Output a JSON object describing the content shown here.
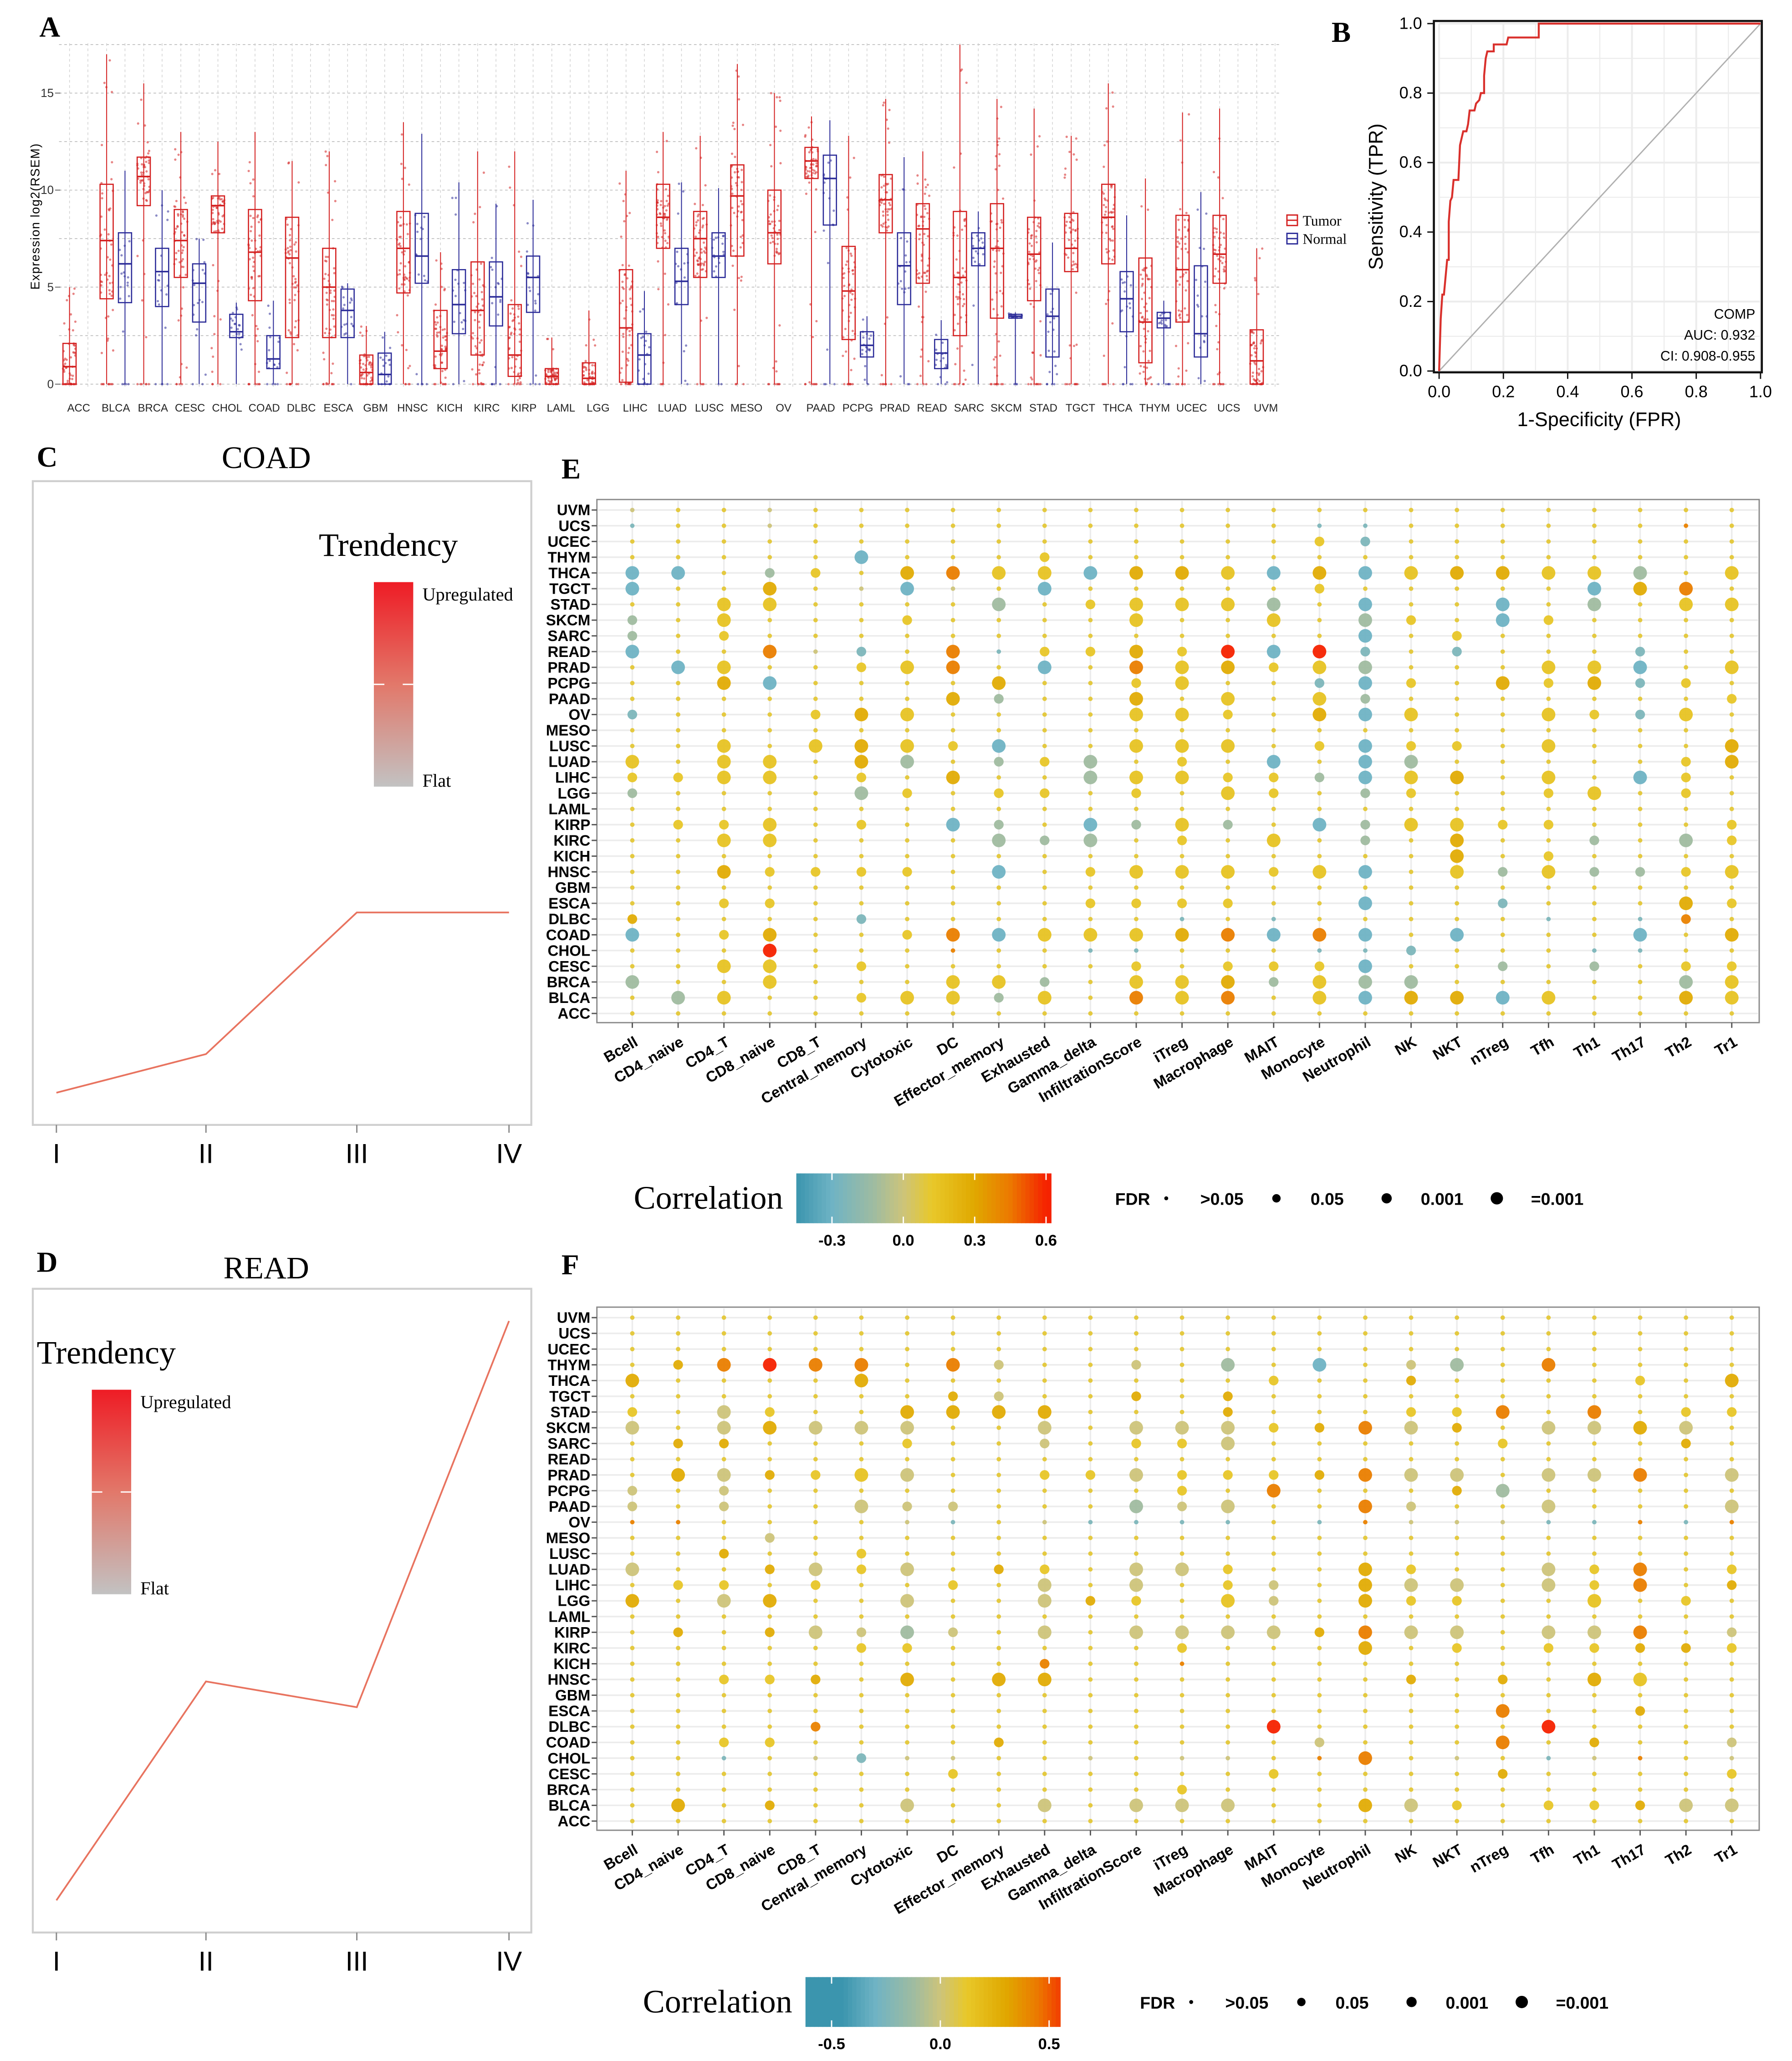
{
  "panel_labels": {
    "A": "A",
    "B": "B",
    "C": "C",
    "D": "D",
    "E": "E",
    "F": "F"
  },
  "chart_data": [
    {
      "id": "A",
      "type": "box",
      "ylabel": "Expression log2(RSEM)",
      "ylim": [
        0,
        18
      ],
      "yticks": [
        0,
        5,
        10,
        15
      ],
      "ytick_labels": [
        "0",
        "5",
        "10",
        "15"
      ],
      "grid": true,
      "legend": [
        "Tumor",
        "Normal"
      ],
      "legend_placement": "right",
      "colors": {
        "Tumor": "#d42020",
        "Normal": "#2b2b98"
      },
      "categories": [
        "ACC",
        "BLCA",
        "BRCA",
        "CESC",
        "CHOL",
        "COAD",
        "DLBC",
        "ESCA",
        "GBM",
        "HNSC",
        "KICH",
        "KIRC",
        "KIRP",
        "LAML",
        "LGG",
        "LIHC",
        "LUAD",
        "LUSC",
        "MESO",
        "OV",
        "PAAD",
        "PCPG",
        "PRAD",
        "READ",
        "SARC",
        "SKCM",
        "STAD",
        "TGCT",
        "THCA",
        "THYM",
        "UCEC",
        "UCS",
        "UVM"
      ],
      "box_fields": [
        "q1",
        "median",
        "q3",
        "max"
      ],
      "tumor": [
        [
          0,
          0.9,
          2.1,
          5
        ],
        [
          4.4,
          7.4,
          10.3,
          17
        ],
        [
          9.2,
          10.7,
          11.7,
          15.5
        ],
        [
          5.5,
          7.4,
          9,
          13
        ],
        [
          7.8,
          9.2,
          9.7,
          12.5
        ],
        [
          4.3,
          6.8,
          9,
          13
        ],
        [
          2.4,
          6.5,
          8.6,
          11.5
        ],
        [
          2.4,
          5,
          7,
          12
        ],
        [
          0,
          0.6,
          1.5,
          3
        ],
        [
          4.7,
          7,
          8.9,
          13.5
        ],
        [
          0.8,
          1.7,
          3.8,
          6.8
        ],
        [
          1.5,
          3.8,
          6.3,
          12
        ],
        [
          0.4,
          1.5,
          4.1,
          12
        ],
        [
          0,
          0.4,
          0.8,
          2.4
        ],
        [
          0,
          0.3,
          1.1,
          3.8
        ],
        [
          0.1,
          2.9,
          5.9,
          11
        ],
        [
          7,
          8.6,
          10.3,
          13
        ],
        [
          5.5,
          7.5,
          8.9,
          12.8
        ],
        [
          6.6,
          9.7,
          11.3,
          16.5
        ],
        [
          6.2,
          7.8,
          10,
          15
        ],
        [
          10.6,
          11.5,
          12.2,
          13.8
        ],
        [
          2.3,
          4.8,
          7.1,
          12.8
        ],
        [
          7.8,
          9.5,
          10.8,
          14.7
        ],
        [
          5.2,
          8,
          9.3,
          12
        ],
        [
          2.5,
          5.5,
          8.9,
          17.5
        ],
        [
          3.4,
          7,
          9.3,
          14.7
        ],
        [
          4.3,
          6.7,
          8.6,
          14.2
        ],
        [
          5.8,
          7,
          8.8,
          12.8
        ],
        [
          6.2,
          8.6,
          10.3,
          15.5
        ],
        [
          1.1,
          3.2,
          6.5,
          10.6
        ],
        [
          3.2,
          5.9,
          8.7,
          14
        ],
        [
          5.2,
          6.7,
          8.7,
          14.2
        ],
        [
          0,
          1.2,
          2.8,
          7
        ]
      ],
      "normal": [
        null,
        [
          4.2,
          6.2,
          7.8,
          11
        ],
        [
          4,
          5.8,
          7,
          10
        ],
        [
          3.2,
          5.2,
          6.2,
          7.5
        ],
        [
          2.4,
          2.7,
          3.6,
          4.2
        ],
        [
          0.8,
          1.3,
          2.5,
          4.3
        ],
        null,
        [
          2.4,
          3.8,
          4.9,
          5.2
        ],
        [
          0,
          0.5,
          1.6,
          2.7
        ],
        [
          5.2,
          6.6,
          8.8,
          12.9
        ],
        [
          2.6,
          4.1,
          5.9,
          10.4
        ],
        [
          3,
          4.5,
          6.3,
          9.3
        ],
        [
          3.7,
          5.5,
          6.6,
          9.5
        ],
        null,
        null,
        [
          0,
          1.5,
          2.6,
          4.8
        ],
        [
          4.1,
          5.3,
          7,
          10.4
        ],
        [
          5.5,
          6.6,
          7.8,
          10.1
        ],
        null,
        null,
        [
          8.2,
          10.6,
          11.8,
          13.6
        ],
        [
          1.4,
          2,
          2.7,
          3.5
        ],
        [
          4.1,
          6.1,
          7.8,
          11.7
        ],
        [
          0.8,
          1.6,
          2.3,
          3.3
        ],
        [
          6.1,
          7,
          7.8,
          8.9
        ],
        [
          3.4,
          3.5,
          3.6,
          3.7
        ],
        [
          1.4,
          3.5,
          4.9,
          7.3
        ],
        null,
        [
          2.7,
          4.4,
          5.8,
          8.7
        ],
        [
          2.9,
          3.4,
          3.7,
          4.3
        ],
        [
          1.4,
          2.6,
          6.1,
          9.9
        ],
        null,
        null
      ]
    },
    {
      "id": "B",
      "type": "line",
      "title": "",
      "xlabel": "1-Specificity (FPR)",
      "ylabel": "Sensitivity (TPR)",
      "xlim": [
        0,
        1
      ],
      "ylim": [
        0,
        1
      ],
      "xticks": [
        "0.0",
        "0.2",
        "0.4",
        "0.6",
        "0.8",
        "1.0"
      ],
      "yticks": [
        "0.0",
        "0.2",
        "0.4",
        "0.6",
        "0.8",
        "1.0"
      ],
      "grid": true,
      "series": [
        {
          "name": "ROC",
          "color": "#d9302c",
          "fpr": [
            0,
            0.005,
            0.01,
            0.015,
            0.02,
            0.025,
            0.03,
            0.03,
            0.035,
            0.04,
            0.045,
            0.06,
            0.065,
            0.075,
            0.085,
            0.09,
            0.095,
            0.11,
            0.115,
            0.125,
            0.13,
            0.14,
            0.14,
            0.145,
            0.15,
            0.17,
            0.17,
            0.21,
            0.215,
            0.31,
            0.31,
            1
          ],
          "tpr": [
            0,
            0.15,
            0.22,
            0.22,
            0.27,
            0.32,
            0.32,
            0.43,
            0.49,
            0.5,
            0.55,
            0.55,
            0.65,
            0.69,
            0.69,
            0.71,
            0.75,
            0.75,
            0.77,
            0.78,
            0.8,
            0.8,
            0.85,
            0.9,
            0.92,
            0.92,
            0.94,
            0.94,
            0.96,
            0.96,
            1,
            1
          ]
        },
        {
          "name": "reference",
          "color": "#b0b0b0",
          "fpr": [
            0,
            1
          ],
          "tpr": [
            0,
            1
          ]
        }
      ],
      "annotation": {
        "gene": "COMP",
        "auc": "AUC: 0.932",
        "ci": "CI: 0.908-0.955"
      }
    },
    {
      "id": "C",
      "type": "line",
      "title": "COAD",
      "x": [
        "I",
        "II",
        "III",
        "IV"
      ],
      "y_relative": [
        0.05,
        0.11,
        0.33,
        0.33
      ],
      "line_color": "#e8735f",
      "legend": {
        "title": "Trendency",
        "high": "Upregulated",
        "low": "Flat",
        "placement": "top-right"
      }
    },
    {
      "id": "D",
      "type": "line",
      "title": "READ",
      "x": [
        "I",
        "II",
        "III",
        "IV"
      ],
      "y_relative": [
        0.05,
        0.39,
        0.35,
        0.95
      ],
      "line_color": "#e8735f",
      "legend": {
        "title": "Trendency",
        "high": "Upregulated",
        "low": "Flat",
        "placement": "top-left"
      }
    },
    {
      "id": "E",
      "type": "heatmap",
      "rows": [
        "UVM",
        "UCS",
        "UCEC",
        "THYM",
        "THCA",
        "TGCT",
        "STAD",
        "SKCM",
        "SARC",
        "READ",
        "PRAD",
        "PCPG",
        "PAAD",
        "OV",
        "MESO",
        "LUSC",
        "LUAD",
        "LIHC",
        "LGG",
        "LAML",
        "KIRP",
        "KIRC",
        "KICH",
        "HNSC",
        "GBM",
        "ESCA",
        "DLBC",
        "COAD",
        "CHOL",
        "CESC",
        "BRCA",
        "BLCA",
        "ACC"
      ],
      "columns": [
        "Bcell",
        "CD4_naive",
        "CD4_T",
        "CD8_naive",
        "CD8_T",
        "Central_memory",
        "Cytotoxic",
        "DC",
        "Effector_memory",
        "Exhausted",
        "Gamma_delta",
        "InfiltrationScore",
        "iTreg",
        "Macrophage",
        "MAIT",
        "Monocyte",
        "Neutrophil",
        "NK",
        "NKT",
        "nTreg",
        "Tfh",
        "Th1",
        "Th17",
        "Th2",
        "Tr1"
      ],
      "code_key": {
        ".": {
          "r": 0.1,
          "fdr": ">0.05"
        },
        ",": {
          "r": 0.0,
          "fdr": ">0.05"
        },
        ":": {
          "r": -0.25,
          "fdr": ">0.05"
        },
        "~": {
          "r": 0.42,
          "fdr": ">0.05"
        },
        "b": {
          "r": -0.25,
          "fdr": "0.05"
        },
        "g": {
          "r": -0.12,
          "fdr": "0.05"
        },
        "k": {
          "r": 0.0,
          "fdr": "0.05"
        },
        "y": {
          "r": 0.13,
          "fdr": "0.05"
        },
        "a": {
          "r": 0.27,
          "fdr": "0.05"
        },
        "o": {
          "r": 0.42,
          "fdr": "0.05"
        },
        "B": {
          "r": -0.3,
          "fdr": "=0.001"
        },
        "G": {
          "r": -0.12,
          "fdr": "=0.001"
        },
        "K": {
          "r": 0.0,
          "fdr": "=0.001"
        },
        "Y": {
          "r": 0.15,
          "fdr": "=0.001"
        },
        "A": {
          "r": 0.28,
          "fdr": "=0.001"
        },
        "O": {
          "r": 0.43,
          "fdr": "=0.001"
        },
        "R": {
          "r": 0.6,
          "fdr": "=0.001"
        }
      },
      "cells": [
        ",..,.....................",
        ":..,...........::......~.",
        "...............yb........",
        ".....B...y...............",
        "BB.gy.AOYYBAAYBABYAAYYG.Y",
        "B..A.,B,.B.....y.....BAO.",
        "..YY....G.yYYYG.B..B.G.YY",
        "g.Y...y....Y..Y.Gy.By....",
        "g.y.............B.y......",
        "B..O,b.O:yyAyRBRb.b...b..",
        ".BY..yYO.B.OYAyYG...YYB.Y",
        "..AB....A..yY..bBy.AyAby.",
        ".......Ag..A.Y.Yg.......y",
        "b...yAY....YYy.ABY..YybY.",
        ".........................",
        "..Y.YAYyB..YYY.yByy.Y...A",
        "Y.YY.AG.gyG.y.B.BG.....yA",
        "yyYY.y.A..GYYyygBYA.Y.By.",
        "g....Gy.yy.y.Yy.gy..yY.y.",
        ".........................",
        ".yyY.y.Bg.BgYg.BgYYyy...y",
        "..YY....GgG.y.Y.g.A..g.Gy",
        "..................A.y....",
        "..Ayyyy.B.yYYYyYB.YgYggyY",
        ".........................",
        "..yy......yyyy..B..b...Ay",
        "a....b......:.:.....:.:o.",
        "B.yA..yOBYYYAOBOB.B...B.A",
        "...R...~..::...::b...::..",
        "..YY.y.....y.yyyB..g.g.yy",
        "G..Y...YYg.YYAgYGG.....GY",
        ".GY..yYYgY.OYO.YBAABY..AY",
        "........................."
      ],
      "colorbar": {
        "title": "Correlation",
        "range": [
          -0.45,
          0.62
        ],
        "ticks": [
          -0.3,
          0.0,
          0.3,
          0.6
        ],
        "tick_labels": [
          "-0.3",
          "0.0",
          "0.3",
          "0.6"
        ]
      },
      "fdr_legend": {
        "title": "FDR",
        "labels": [
          ">0.05",
          "0.05",
          "0.001",
          "=0.001"
        ]
      },
      "grid": true
    },
    {
      "id": "F",
      "type": "heatmap",
      "rows": [
        "UVM",
        "UCS",
        "UCEC",
        "THYM",
        "THCA",
        "TGCT",
        "STAD",
        "SKCM",
        "SARC",
        "READ",
        "PRAD",
        "PCPG",
        "PAAD",
        "OV",
        "MESO",
        "LUSC",
        "LUAD",
        "LIHC",
        "LGG",
        "LAML",
        "KIRP",
        "KIRC",
        "KICH",
        "HNSC",
        "GBM",
        "ESCA",
        "DLBC",
        "COAD",
        "CHOL",
        "CESC",
        "BRCA",
        "BLCA",
        "ACC"
      ],
      "columns": [
        "Bcell",
        "CD4_naive",
        "CD4_T",
        "CD8_naive",
        "CD8_T",
        "Central_memory",
        "Cytotoxic",
        "DC",
        "Effector_memory",
        "Exhausted",
        "Gamma_delta",
        "InfiltrationScore",
        "iTreg",
        "Macrophage",
        "MAIT",
        "Monocyte",
        "Neutrophil",
        "NK",
        "NKT",
        "nTreg",
        "Tfh",
        "Th1",
        "Th17",
        "Th2",
        "Tr1"
      ],
      "cells": [
        ".........................",
        ".........................",
        ".........................",
        ".aOROO.Ok..k.G.B.kG.O....",
        "A....A........y..a....y.A",
        ".......ak..a.a...........",
        "y.Ky..AAAA...a...yyO.O.yy",
        "K.KAKKK..K.KKKyaOKa.KKAK.",
        ".aa...y..k.yyK.....y...a.",
        ".........................",
        ".AKayYK..yyKyyyaOKK.KKO.K",
        "k.k.........y.O...aG.....",
        "k.k..Kkk...GkK..Ok..K...K",
        "~~....,:.,::::.:~,,,::~:~",
        "...k.....................",
        "..a..y...................",
        "K..aKyK.ay.KKy..Ay..KyO.y",
        ".yy.y..y.K.K.yk.AKK.KyO.a",
        "A.KA..K..Kay.Yk.Ayy..Y.y.",
        ".........................",
        ".a.aKkGk.K.KKKKaOKK.KKO.k",
        ".....yy.....y...A.y.yyaay",
        ".........o..~............",
        "..yya.A.AA.......a.a.AY..",
        ".........................",
        "...................O..a..",
        "....o.........R.....R....",
        "..yy....a......k...O.a..k",
        "..:.,b,,..,.,,.~O.,.:,~.,",
        ".......y......y....a....y",
        "............y............",
        ".A.a..K..K.KKK..AKy.yyaKK",
        "........................."
      ],
      "colorbar": {
        "title": "Correlation",
        "range": [
          -0.62,
          0.55
        ],
        "ticks": [
          -0.5,
          0.0,
          0.5
        ],
        "tick_labels": [
          "-0.5",
          "0.0",
          "0.5"
        ]
      },
      "fdr_legend": {
        "title": "FDR",
        "labels": [
          ">0.05",
          "0.05",
          "0.001",
          "=0.001"
        ]
      },
      "grid": true
    }
  ]
}
